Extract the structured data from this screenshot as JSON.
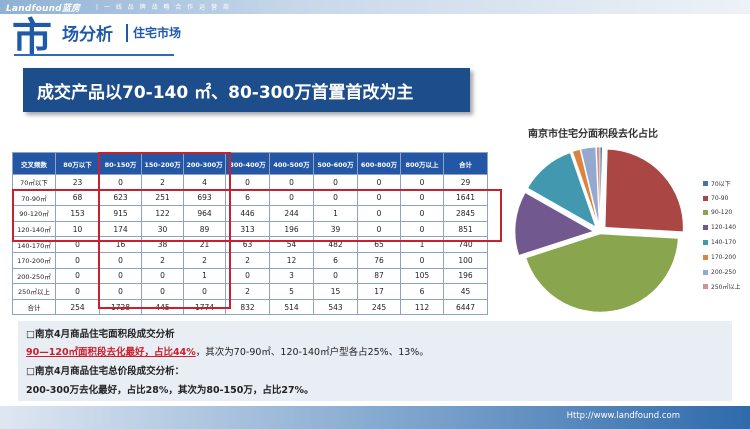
{
  "header": {
    "brand": "Landfound蓝房",
    "tagline": "| 一 线 品 牌 战 略 合 作 运 营 商",
    "big_char": "市",
    "title_rest": "场分析",
    "subtitle": "住宅市场"
  },
  "banner": {
    "text": "成交产品以70-140 ㎡、80-300万首置首改为主"
  },
  "table": {
    "headers": [
      "交叉频数",
      "80万以下",
      "80-150万",
      "150-200万",
      "200-300万",
      "300-400万",
      "400-500万",
      "500-600万",
      "600-800万",
      "800万以上",
      "合计"
    ],
    "rows": [
      [
        "70㎡以下",
        "23",
        "0",
        "2",
        "4",
        "0",
        "0",
        "0",
        "0",
        "0",
        "29"
      ],
      [
        "70-90㎡",
        "68",
        "623",
        "251",
        "693",
        "6",
        "0",
        "0",
        "0",
        "0",
        "1641"
      ],
      [
        "90-120㎡",
        "153",
        "915",
        "122",
        "964",
        "446",
        "244",
        "1",
        "0",
        "0",
        "2845"
      ],
      [
        "120-140㎡",
        "10",
        "174",
        "30",
        "89",
        "313",
        "196",
        "39",
        "0",
        "0",
        "851"
      ],
      [
        "140-170㎡",
        "0",
        "16",
        "38",
        "21",
        "63",
        "54",
        "482",
        "65",
        "1",
        "740"
      ],
      [
        "170-200㎡",
        "0",
        "0",
        "2",
        "2",
        "2",
        "12",
        "6",
        "76",
        "0",
        "100"
      ],
      [
        "200-250㎡",
        "0",
        "0",
        "0",
        "1",
        "0",
        "3",
        "0",
        "87",
        "105",
        "196"
      ],
      [
        "250㎡以上",
        "0",
        "0",
        "0",
        "0",
        "2",
        "5",
        "15",
        "17",
        "6",
        "45"
      ],
      [
        "合计",
        "254",
        "1728",
        "445",
        "1774",
        "832",
        "514",
        "543",
        "245",
        "112",
        "6447"
      ]
    ]
  },
  "chart_data": {
    "type": "pie",
    "title": "南京市住宅分面积段去化占比",
    "categories": [
      "70以下",
      "70-90",
      "90-120",
      "120-140",
      "140-170",
      "170-200",
      "200-250",
      "250㎡以上"
    ],
    "values": [
      29,
      1641,
      2845,
      851,
      740,
      100,
      196,
      45
    ],
    "colors": [
      "#4572a7",
      "#aa4643",
      "#89a54e",
      "#71588f",
      "#4198af",
      "#db843d",
      "#93a9cf",
      "#d19392"
    ],
    "legend_position": "right"
  },
  "analysis": {
    "heading1": "□南京4月商品住宅面积段成交分析",
    "highlight": "90—120㎡面积段去化最好，占比44%",
    "line2_rest": "，其次为70-90㎡、120-140㎡户型各占25%、13%。",
    "heading2": "□南京4月商品住宅总价段成交分析：",
    "line4": "200-300万去化最好，占比28%，其次为80-150万，占比27%。"
  },
  "footer": {
    "url": "Http://www.landfound.com"
  }
}
